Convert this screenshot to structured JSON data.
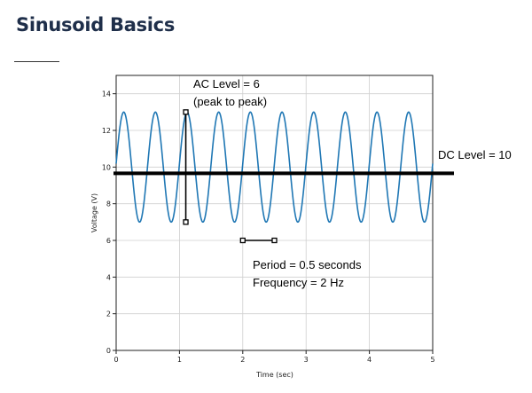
{
  "page": {
    "title": "Sinusoid Basics"
  },
  "chart_data": {
    "type": "line",
    "title": "",
    "xlabel": "Time (sec)",
    "ylabel": "Voltage (V)",
    "xlim": [
      0,
      5
    ],
    "ylim": [
      0,
      15
    ],
    "xticks": [
      0,
      1,
      2,
      3,
      4,
      5
    ],
    "yticks": [
      0,
      2,
      4,
      6,
      8,
      10,
      12,
      14
    ],
    "grid": true,
    "series": [
      {
        "dc_offset": 10,
        "amplitude": 3,
        "frequency_hz": 2,
        "phase_note": "cosine-like, peak near t=0.12",
        "color": "#1f77b4"
      }
    ],
    "dc_line": {
      "value": 10,
      "color": "#000000"
    },
    "annotations": {
      "ac_level_line1": "AC Level = 6",
      "ac_level_line2": "(peak to peak)",
      "dc_level": "DC Level = 10",
      "period": "Period = 0.5 seconds",
      "frequency": "Frequency = 2 Hz"
    },
    "markers": {
      "ac_bracket": {
        "t": 1.1,
        "v_low": 7,
        "v_high": 13
      },
      "period_bracket": {
        "v": 6,
        "t_start": 2.0,
        "t_end": 2.5
      }
    }
  }
}
